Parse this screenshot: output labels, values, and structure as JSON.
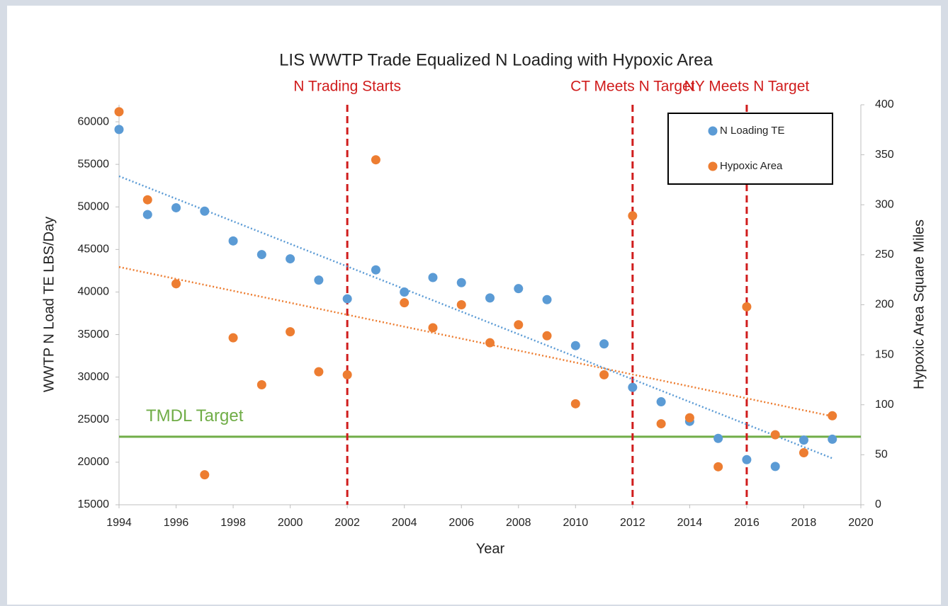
{
  "chart_data": {
    "type": "scatter",
    "title": "LIS WWTP Trade Equalized N Loading with Hypoxic Area",
    "x_label": "Year",
    "y_label": "WWTP N Load TE LBS/Day",
    "y2_label": "Hypoxic Area Square Miles",
    "x": [
      1994,
      1995,
      1996,
      1997,
      1998,
      1999,
      2000,
      2001,
      2002,
      2003,
      2004,
      2005,
      2006,
      2007,
      2008,
      2009,
      2010,
      2011,
      2012,
      2013,
      2014,
      2015,
      2016,
      2017,
      2018,
      2019
    ],
    "series": [
      {
        "name": "N Loading TE",
        "color": "#5b9bd5",
        "trendline": true,
        "values": [
          59100,
          49100,
          49900,
          49500,
          46000,
          44400,
          43900,
          41400,
          39200,
          42600,
          40000,
          41700,
          41100,
          39300,
          40400,
          39100,
          33700,
          33900,
          28800,
          27100,
          24800,
          22800,
          20300,
          19500,
          22600,
          22700
        ]
      },
      {
        "name": "Hypoxic Area",
        "color": "#ed7d31",
        "axis": "y2",
        "trendline": true,
        "values": [
          393,
          305,
          221,
          30,
          167,
          120,
          173,
          133,
          130,
          345,
          202,
          177,
          200,
          162,
          180,
          169,
          101,
          130,
          289,
          81,
          87,
          38,
          198,
          70,
          52,
          89
        ]
      }
    ],
    "xlim": [
      1994,
      2020
    ],
    "xticks": [
      1994,
      1996,
      1998,
      2000,
      2002,
      2004,
      2006,
      2008,
      2010,
      2012,
      2014,
      2016,
      2018,
      2020
    ],
    "ylim": [
      15000,
      62000
    ],
    "yticks": [
      15000,
      20000,
      25000,
      30000,
      35000,
      40000,
      45000,
      50000,
      55000,
      60000
    ],
    "y2lim": [
      0,
      400
    ],
    "y2ticks": [
      0,
      50,
      100,
      150,
      200,
      250,
      300,
      350,
      400
    ],
    "hlines": [
      {
        "value": 23000,
        "label": "TMDL Target",
        "color": "#70ad47"
      }
    ],
    "vlines": [
      {
        "value": 2002,
        "label": "N Trading Starts",
        "color": "#d01c1c"
      },
      {
        "value": 2012,
        "label": "CT Meets N Target",
        "color": "#d01c1c"
      },
      {
        "value": 2016,
        "label": "NY Meets N Target",
        "color": "#d01c1c"
      }
    ],
    "legend": "top-right"
  }
}
